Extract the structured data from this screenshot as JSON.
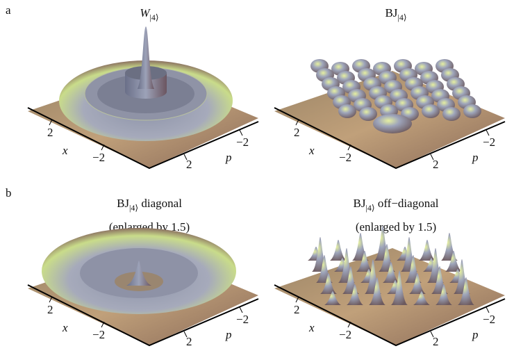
{
  "panels": [
    {
      "label": "a",
      "plots": [
        {
          "title": {
            "main": "W",
            "sub": "|4⟩"
          },
          "axes": {
            "x": "x",
            "p": "p",
            "x_ticks": [
              "2",
              "−2"
            ],
            "p_ticks": [
              "2",
              "−2"
            ]
          }
        },
        {
          "title": {
            "main": "BJ",
            "sub": "|4⟩"
          },
          "axes": {
            "x": "x",
            "p": "p",
            "x_ticks": [
              "2",
              "−2"
            ],
            "p_ticks": [
              "2",
              "−2"
            ]
          }
        }
      ]
    },
    {
      "label": "b",
      "plots": [
        {
          "title": {
            "main": "BJ",
            "sub": "|4⟩",
            "suffix": " diagonal"
          },
          "note": "(enlarged by 1.5)",
          "axes": {
            "x": "x",
            "p": "p",
            "x_ticks": [
              "2",
              "−2"
            ],
            "p_ticks": [
              "2",
              "−2"
            ]
          }
        },
        {
          "title": {
            "main": "BJ",
            "sub": "|4⟩",
            "suffix": " off−diagonal"
          },
          "note": "(enlarged by 1.5)",
          "axes": {
            "x": "x",
            "p": "p",
            "x_ticks": [
              "2",
              "−2"
            ],
            "p_ticks": [
              "2",
              "−2"
            ]
          }
        }
      ]
    }
  ]
}
